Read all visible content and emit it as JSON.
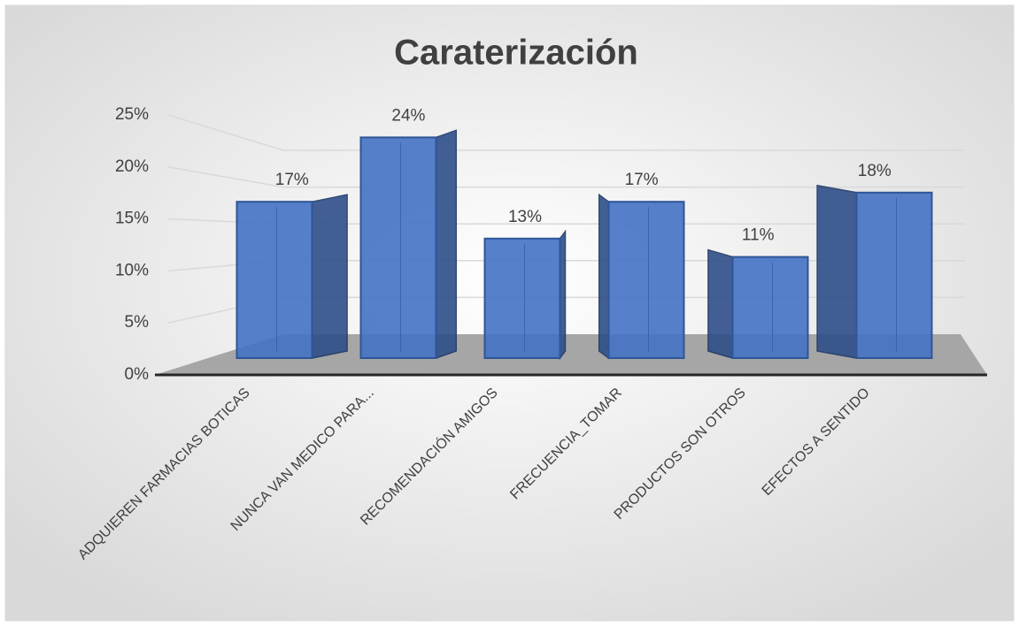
{
  "chart_data": {
    "type": "bar",
    "title": "Caraterización",
    "categories": [
      "ADQUIEREN FARMACIAS BOTICAS",
      "NUNCA VAN MEDICO PARA...",
      "RECOMENDACIÓN AMIGOS",
      "FRECUENCIA_TOMAR",
      "PRODUCTOS SON OTROS",
      "EFECTOS A SENTIDO"
    ],
    "values": [
      17,
      24,
      13,
      17,
      11,
      18
    ],
    "value_labels": [
      "17%",
      "24%",
      "13%",
      "17%",
      "11%",
      "18%"
    ],
    "color": "#4472c4",
    "ylim": [
      0,
      25
    ],
    "yticks": [
      {
        "value": 0,
        "label": "0%"
      },
      {
        "value": 5,
        "label": "5%"
      },
      {
        "value": 10,
        "label": "10%"
      },
      {
        "value": 15,
        "label": "15%"
      },
      {
        "value": 20,
        "label": "20%"
      },
      {
        "value": 25,
        "label": "25%"
      }
    ],
    "grid": true
  }
}
